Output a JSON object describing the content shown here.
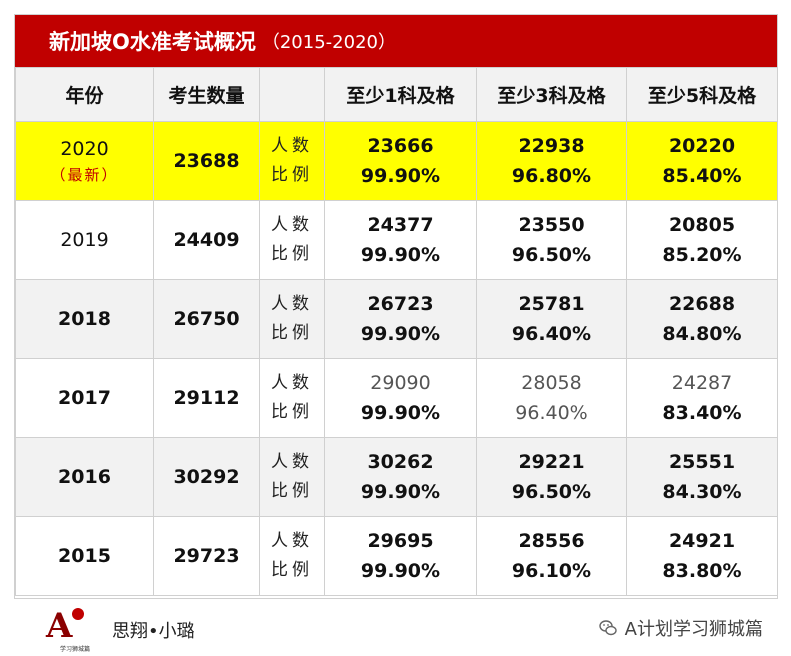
{
  "title": {
    "main": "新加坡O水准考试概况",
    "sub": "（2015-2020）"
  },
  "headers": [
    "年份",
    "考生数量",
    "",
    "至少1科及格",
    "至少3科及格",
    "至少5科及格"
  ],
  "row_labels": {
    "count": "人数",
    "ratio": "比例"
  },
  "rows": [
    {
      "year": "2020",
      "note": "（最新）",
      "candidates": "23688",
      "c1": "23666",
      "r1": "99.90%",
      "c3": "22938",
      "r3": "96.80%",
      "c5": "20220",
      "r5": "85.40%"
    },
    {
      "year": "2019",
      "note": "",
      "candidates": "24409",
      "c1": "24377",
      "r1": "99.90%",
      "c3": "23550",
      "r3": "96.50%",
      "c5": "20805",
      "r5": "85.20%"
    },
    {
      "year": "2018",
      "note": "",
      "candidates": "26750",
      "c1": "26723",
      "r1": "99.90%",
      "c3": "25781",
      "r3": "96.40%",
      "c5": "22688",
      "r5": "84.80%"
    },
    {
      "year": "2017",
      "note": "",
      "candidates": "29112",
      "c1": "29090",
      "r1": "99.90%",
      "c3": "28058",
      "r3": "96.40%",
      "c5": "24287",
      "r5": "83.40%"
    },
    {
      "year": "2016",
      "note": "",
      "candidates": "30292",
      "c1": "30262",
      "r1": "99.90%",
      "c3": "29221",
      "r3": "96.50%",
      "c5": "25551",
      "r5": "84.30%"
    },
    {
      "year": "2015",
      "note": "",
      "candidates": "29723",
      "c1": "29695",
      "r1": "99.90%",
      "c3": "28556",
      "r3": "96.10%",
      "c5": "24921",
      "r5": "83.80%"
    }
  ],
  "footer": {
    "logo_letter": "A",
    "logo_caption": "学习狮城篇",
    "brand": "思翔•小璐",
    "account": "A计划学习狮城篇",
    "icon": "wechat-icon"
  },
  "colors": {
    "title_bg": "#c00000",
    "highlight": "#ffff00",
    "stripe": "#f2f2f2",
    "note_red": "#c00000"
  }
}
